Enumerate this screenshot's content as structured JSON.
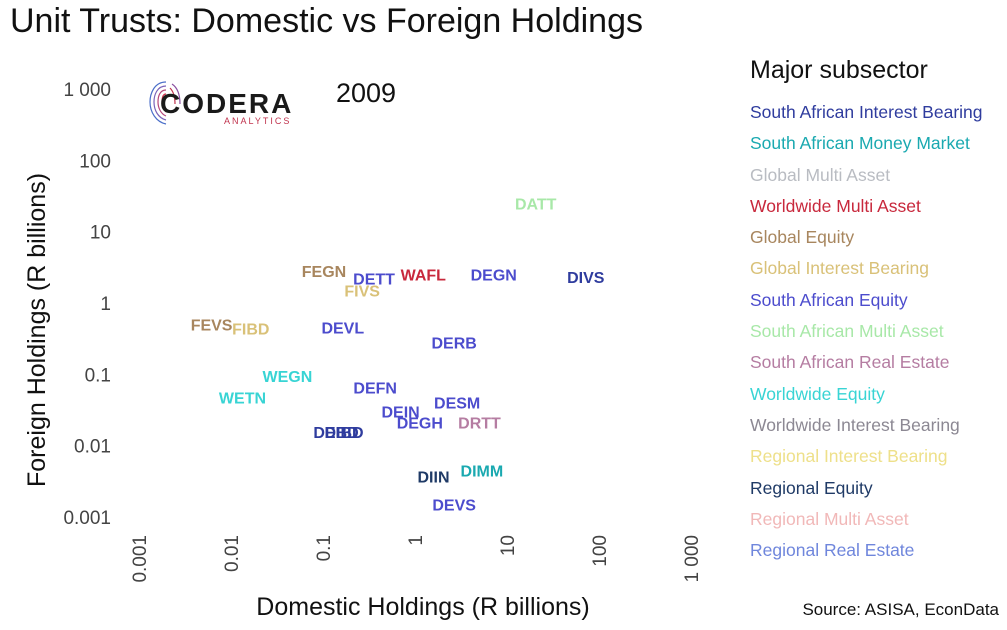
{
  "title": "Unit Trusts: Domestic vs Foreign Holdings",
  "source": "Source: ASISA, EconData",
  "logo": {
    "name": "CODERA",
    "sub": "ANALYTICS"
  },
  "legend": {
    "title": "Major subsector",
    "items": [
      {
        "label": "South African Interest Bearing",
        "color": "#2f3c9e"
      },
      {
        "label": "South African Money Market",
        "color": "#1aa9b0"
      },
      {
        "label": "Global Multi Asset",
        "color": "#b9bcc2"
      },
      {
        "label": "Worldwide Multi Asset",
        "color": "#c8283c"
      },
      {
        "label": "Global Equity",
        "color": "#a8865e"
      },
      {
        "label": "Global Interest Bearing",
        "color": "#d9c178"
      },
      {
        "label": "South African Equity",
        "color": "#4c4ccd"
      },
      {
        "label": "South African Multi Asset",
        "color": "#a8e8a8"
      },
      {
        "label": "South African Real Estate",
        "color": "#b57da2"
      },
      {
        "label": "Worldwide Equity",
        "color": "#38d4d4"
      },
      {
        "label": "Worldwide Interest Bearing",
        "color": "#8c8893"
      },
      {
        "label": "Regional Interest Bearing",
        "color": "#eee08a"
      },
      {
        "label": "Regional Equity",
        "color": "#1f3a66"
      },
      {
        "label": "Regional Multi Asset",
        "color": "#f1b8b8"
      },
      {
        "label": "Regional Real Estate",
        "color": "#6f86dc"
      }
    ]
  },
  "chart_data": {
    "type": "scatter",
    "title": "2009",
    "xlabel": "Domestic Holdings (R billions)",
    "ylabel": "Foreign Holdings (R billions)",
    "xscale": "log10",
    "yscale": "log10",
    "xlim": [
      0.001,
      1000
    ],
    "ylim": [
      0.001,
      1000
    ],
    "xticks": [
      "0.001",
      "0.01",
      "0.1",
      "1",
      "10",
      "100",
      "1 000"
    ],
    "yticks": [
      "0.001",
      "0.01",
      "0.1",
      "1",
      "10",
      "100",
      "1 000"
    ],
    "grid": false,
    "legend_position": "right",
    "points": [
      {
        "label": "DATT",
        "x": 20,
        "y": 25,
        "subsector": "South African Multi Asset"
      },
      {
        "label": "FEGN",
        "x": 0.1,
        "y": 2.8,
        "subsector": "Global Equity"
      },
      {
        "label": "DETT",
        "x": 0.35,
        "y": 2.2,
        "subsector": "South African Equity"
      },
      {
        "label": "WAFL",
        "x": 1.2,
        "y": 2.5,
        "subsector": "Worldwide Multi Asset"
      },
      {
        "label": "DEGN",
        "x": 7,
        "y": 2.5,
        "subsector": "South African Equity"
      },
      {
        "label": "DIVS",
        "x": 70,
        "y": 2.3,
        "subsector": "South African Interest Bearing"
      },
      {
        "label": "FIVS",
        "x": 0.26,
        "y": 1.5,
        "subsector": "Global Interest Bearing"
      },
      {
        "label": "FEVS",
        "x": 0.006,
        "y": 0.5,
        "subsector": "Global Equity"
      },
      {
        "label": "FIBD",
        "x": 0.016,
        "y": 0.44,
        "subsector": "Global Interest Bearing"
      },
      {
        "label": "DEVL",
        "x": 0.16,
        "y": 0.45,
        "subsector": "South African Equity"
      },
      {
        "label": "DERB",
        "x": 2.6,
        "y": 0.28,
        "subsector": "South African Equity"
      },
      {
        "label": "WEGN",
        "x": 0.04,
        "y": 0.095,
        "subsector": "Worldwide Equity"
      },
      {
        "label": "DEFN",
        "x": 0.36,
        "y": 0.065,
        "subsector": "South African Equity"
      },
      {
        "label": "WETN",
        "x": 0.013,
        "y": 0.047,
        "subsector": "Worldwide Equity"
      },
      {
        "label": "DESM",
        "x": 2.8,
        "y": 0.04,
        "subsector": "South African Equity"
      },
      {
        "label": "DEIN",
        "x": 0.68,
        "y": 0.03,
        "subsector": "South African Equity"
      },
      {
        "label": "DEGH",
        "x": 1.1,
        "y": 0.021,
        "subsector": "South African Equity"
      },
      {
        "label": "DRTT",
        "x": 4.9,
        "y": 0.021,
        "subsector": "South African Real Estate"
      },
      {
        "label": "DEBD",
        "x": 0.135,
        "y": 0.0155,
        "subsector": "South African Interest Bearing"
      },
      {
        "label": "DIBD",
        "x": 0.165,
        "y": 0.0155,
        "subsector": "South African Interest Bearing"
      },
      {
        "label": "DIMM",
        "x": 5.2,
        "y": 0.0045,
        "subsector": "South African Money Market"
      },
      {
        "label": "DIIN",
        "x": 1.55,
        "y": 0.0037,
        "subsector": "Regional Equity"
      },
      {
        "label": "DEVS",
        "x": 2.6,
        "y": 0.0015,
        "subsector": "South African Equity"
      }
    ]
  }
}
